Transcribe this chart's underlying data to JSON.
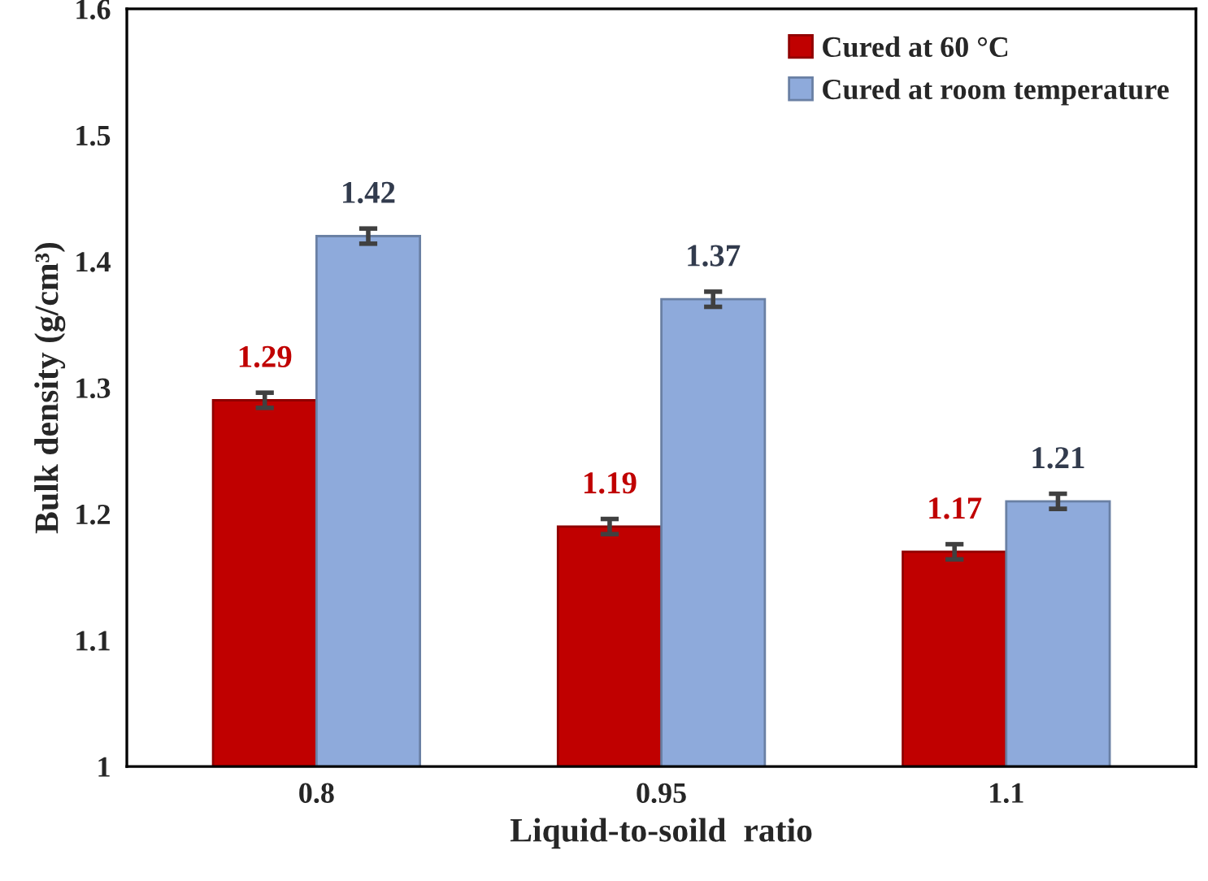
{
  "chart_data": {
    "type": "bar",
    "xlabel": "Liquid-to-soild  ratio",
    "ylabel": "Bulk density (g/cm³)",
    "categories": [
      "0.8",
      "0.95",
      "1.1"
    ],
    "series": [
      {
        "name": "Cured at 60 °C",
        "color": "#c00000",
        "values": [
          1.29,
          1.19,
          1.17
        ],
        "errors": [
          0.006,
          0.006,
          0.006
        ]
      },
      {
        "name": "Cured at room temperature",
        "color": "#8eaadb",
        "values": [
          1.42,
          1.37,
          1.21
        ],
        "errors": [
          0.006,
          0.006,
          0.006
        ]
      }
    ],
    "ylim": [
      1,
      1.6
    ],
    "yticks": [
      {
        "value": 1,
        "label": "1"
      },
      1.1,
      1.2,
      1.3,
      1.4,
      1.5,
      1.6
    ],
    "data_labels": true,
    "legend": "top right",
    "grid": false
  }
}
